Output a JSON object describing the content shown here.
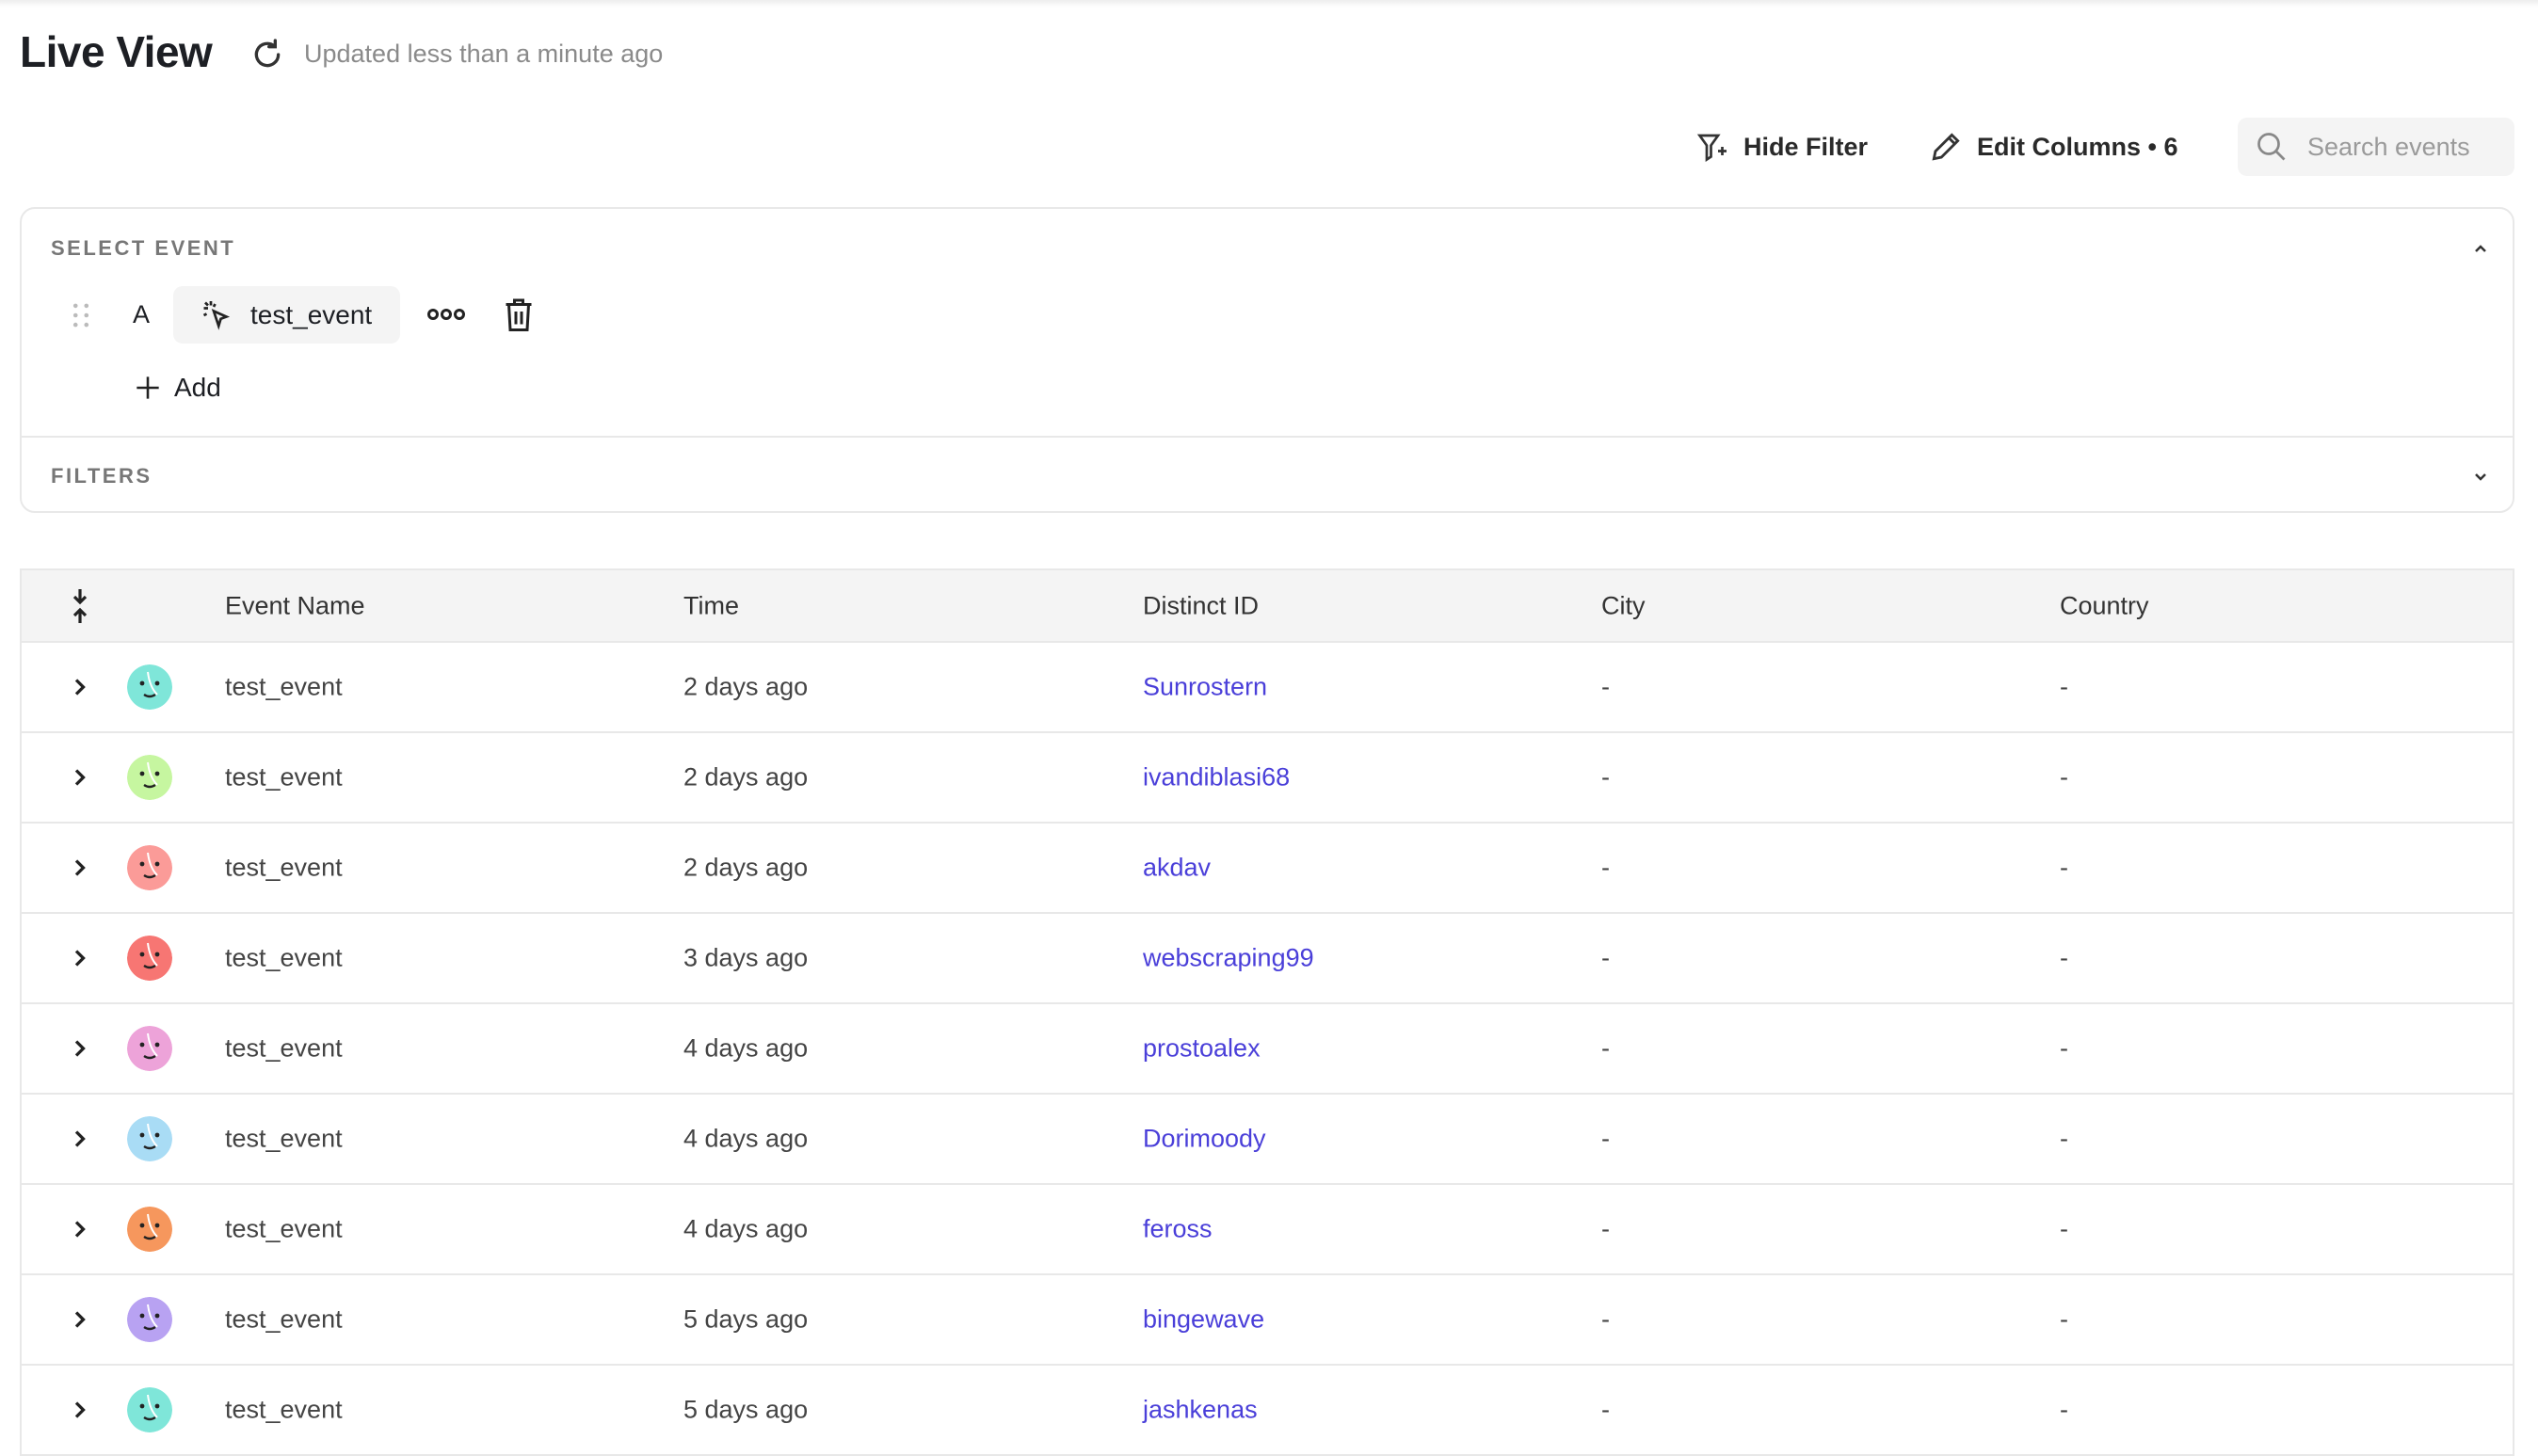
{
  "header": {
    "title": "Live View",
    "updated": "Updated less than a minute ago"
  },
  "toolbar": {
    "hide_filter": "Hide Filter",
    "edit_columns": "Edit Columns • 6",
    "search_placeholder": "Search events"
  },
  "panel": {
    "select_event_label": "SELECT EVENT",
    "event_letter": "A",
    "event_name": "test_event",
    "add_label": "Add",
    "filters_label": "FILTERS"
  },
  "table": {
    "columns": [
      "Event Name",
      "Time",
      "Distinct ID",
      "City",
      "Country"
    ],
    "rows": [
      {
        "event": "test_event",
        "time": "2 days ago",
        "distinct_id": "Sunrostern",
        "city": "-",
        "country": "-",
        "avatar_color": "#7fe6d9"
      },
      {
        "event": "test_event",
        "time": "2 days ago",
        "distinct_id": "ivandiblasi68",
        "city": "-",
        "country": "-",
        "avatar_color": "#c6f6a0"
      },
      {
        "event": "test_event",
        "time": "2 days ago",
        "distinct_id": "akdav",
        "city": "-",
        "country": "-",
        "avatar_color": "#fb9b98"
      },
      {
        "event": "test_event",
        "time": "3 days ago",
        "distinct_id": "webscraping99",
        "city": "-",
        "country": "-",
        "avatar_color": "#f77673"
      },
      {
        "event": "test_event",
        "time": "4 days ago",
        "distinct_id": "prostoalex",
        "city": "-",
        "country": "-",
        "avatar_color": "#eda3d9"
      },
      {
        "event": "test_event",
        "time": "4 days ago",
        "distinct_id": "Dorimoody",
        "city": "-",
        "country": "-",
        "avatar_color": "#a9dcf5"
      },
      {
        "event": "test_event",
        "time": "4 days ago",
        "distinct_id": "feross",
        "city": "-",
        "country": "-",
        "avatar_color": "#f6975d"
      },
      {
        "event": "test_event",
        "time": "5 days ago",
        "distinct_id": "bingewave",
        "city": "-",
        "country": "-",
        "avatar_color": "#b8a2f2"
      },
      {
        "event": "test_event",
        "time": "5 days ago",
        "distinct_id": "jashkenas",
        "city": "-",
        "country": "-",
        "avatar_color": "#7fe6d9"
      }
    ]
  },
  "colors": {
    "link": "#4a3fd9",
    "header_bg": "#f4f4f4",
    "border": "#e8e8e8"
  }
}
